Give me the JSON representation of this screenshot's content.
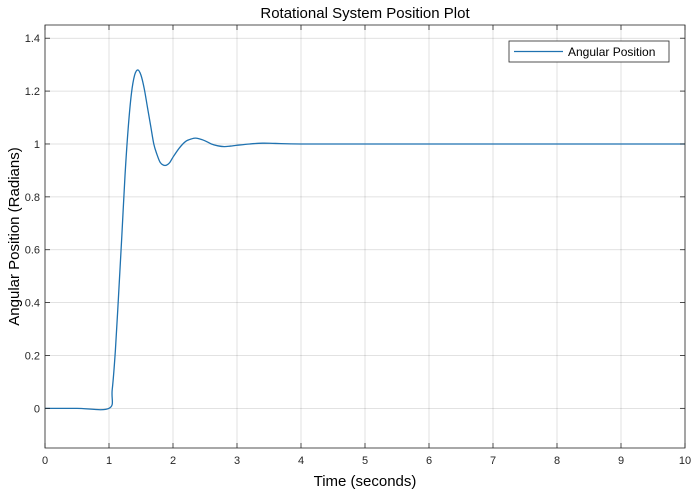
{
  "chart_data": {
    "type": "line",
    "title": "Rotational System Position Plot",
    "xlabel": "Time (seconds)",
    "ylabel": "Angular Position (Radians)",
    "xlim": [
      0,
      10
    ],
    "ylim": [
      -0.15,
      1.45
    ],
    "xticks": [
      "0",
      "1",
      "2",
      "3",
      "4",
      "5",
      "6",
      "7",
      "8",
      "9",
      "10"
    ],
    "yticks": [
      "0",
      "0.2",
      "0.4",
      "0.6",
      "0.8",
      "1",
      "1.2",
      "1.4"
    ],
    "grid": true,
    "legend_position": "top-right",
    "series": [
      {
        "name": "Angular Position",
        "color": "#1f72b0",
        "x": [
          0,
          0.5,
          1.0,
          1.05,
          1.1,
          1.15,
          1.2,
          1.25,
          1.3,
          1.35,
          1.4,
          1.45,
          1.5,
          1.55,
          1.6,
          1.65,
          1.7,
          1.75,
          1.8,
          1.85,
          1.9,
          1.95,
          2.0,
          2.1,
          2.2,
          2.3,
          2.35,
          2.4,
          2.5,
          2.6,
          2.7,
          2.8,
          2.9,
          3.0,
          3.2,
          3.4,
          3.6,
          4.0,
          5.0,
          6.0,
          7.0,
          8.0,
          9.0,
          10.0
        ],
        "y": [
          0,
          0,
          0,
          0.07,
          0.22,
          0.43,
          0.65,
          0.88,
          1.06,
          1.19,
          1.26,
          1.28,
          1.26,
          1.21,
          1.14,
          1.07,
          1.0,
          0.96,
          0.93,
          0.92,
          0.92,
          0.93,
          0.95,
          0.985,
          1.01,
          1.02,
          1.022,
          1.02,
          1.012,
          1.0,
          0.993,
          0.99,
          0.992,
          0.995,
          1.0,
          1.003,
          1.002,
          1.0,
          1.0,
          1.0,
          1.0,
          1.0,
          1.0,
          1.0
        ]
      }
    ]
  }
}
